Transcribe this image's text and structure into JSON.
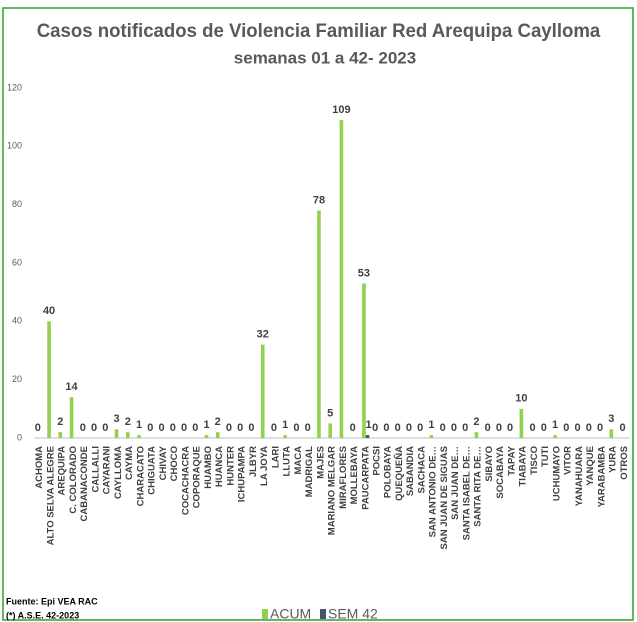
{
  "chart_data": {
    "type": "bar",
    "title": "Casos notificados  de Violencia Familiar Red Arequipa Caylloma",
    "subtitle": "semanas 01 a 42- 2023",
    "categories": [
      "ACHOMA",
      "ALTO SELVA ALEGRE",
      "AREQUIPA",
      "C. COLORADO",
      "CABANACONDE",
      "CALLALLI",
      "CAYARANI",
      "CAYLLOMA",
      "CAYMA",
      "CHARACATO",
      "CHIGUATA",
      "CHIVAY",
      "CHOCO",
      "COCACHACRA",
      "COPORAQUE",
      "HUAMBO",
      "HUANCA",
      "HUNTER",
      "ICHUPAMPA",
      "JLBYR",
      "LA JOYA",
      "LARI",
      "LLUTA",
      "MACA",
      "MADRIGAL",
      "MAJES",
      "MARIANO MELGAR",
      "MIRAFLORES",
      "MOLLEBAYA",
      "PAUCARPATA",
      "POCSI",
      "POLOBAYA",
      "QUEQUEÑA",
      "SABANDIA",
      "SACHACA",
      "SAN ANTONIO DE…",
      "SAN JUAN DE SIGUAS",
      "SAN JUAN DE…",
      "SANTA ISABEL DE…",
      "SANTA RITA DE…",
      "SIBAYO",
      "SOCABAYA",
      "TAPAY",
      "TIABAYA",
      "TISCO",
      "TUTI",
      "UCHUMAYO",
      "VITOR",
      "YANAHUARA",
      "YANQUE",
      "YARABAMBA",
      "YURA",
      "OTROS"
    ],
    "series": [
      {
        "name": "ACUM",
        "color": "#92d050",
        "values": [
          0,
          40,
          2,
          14,
          0,
          0,
          0,
          3,
          2,
          1,
          0,
          0,
          0,
          0,
          0,
          1,
          2,
          0,
          0,
          0,
          32,
          0,
          1,
          0,
          0,
          78,
          5,
          109,
          0,
          53,
          0,
          0,
          0,
          0,
          0,
          1,
          0,
          0,
          0,
          2,
          0,
          0,
          0,
          10,
          0,
          0,
          1,
          0,
          0,
          0,
          0,
          3,
          0
        ]
      },
      {
        "name": "SEM 42",
        "color": "#44546a",
        "values": [
          0,
          0,
          0,
          0,
          0,
          0,
          0,
          0,
          0,
          0,
          0,
          0,
          0,
          0,
          0,
          0,
          0,
          0,
          0,
          0,
          0,
          0,
          0,
          0,
          0,
          0,
          0,
          0,
          0,
          1,
          0,
          0,
          0,
          0,
          0,
          0,
          0,
          0,
          0,
          0,
          0,
          0,
          0,
          0,
          0,
          0,
          0,
          0,
          0,
          0,
          0,
          0,
          0
        ]
      }
    ],
    "ylim": [
      0,
      120
    ],
    "yticks": [
      0,
      20,
      40,
      60,
      80,
      100,
      120
    ],
    "grid": false,
    "legend": "bottom",
    "notes": [
      "Fuente: Epi VEA RAC",
      "(*) A.S.E. 42-2023"
    ]
  }
}
